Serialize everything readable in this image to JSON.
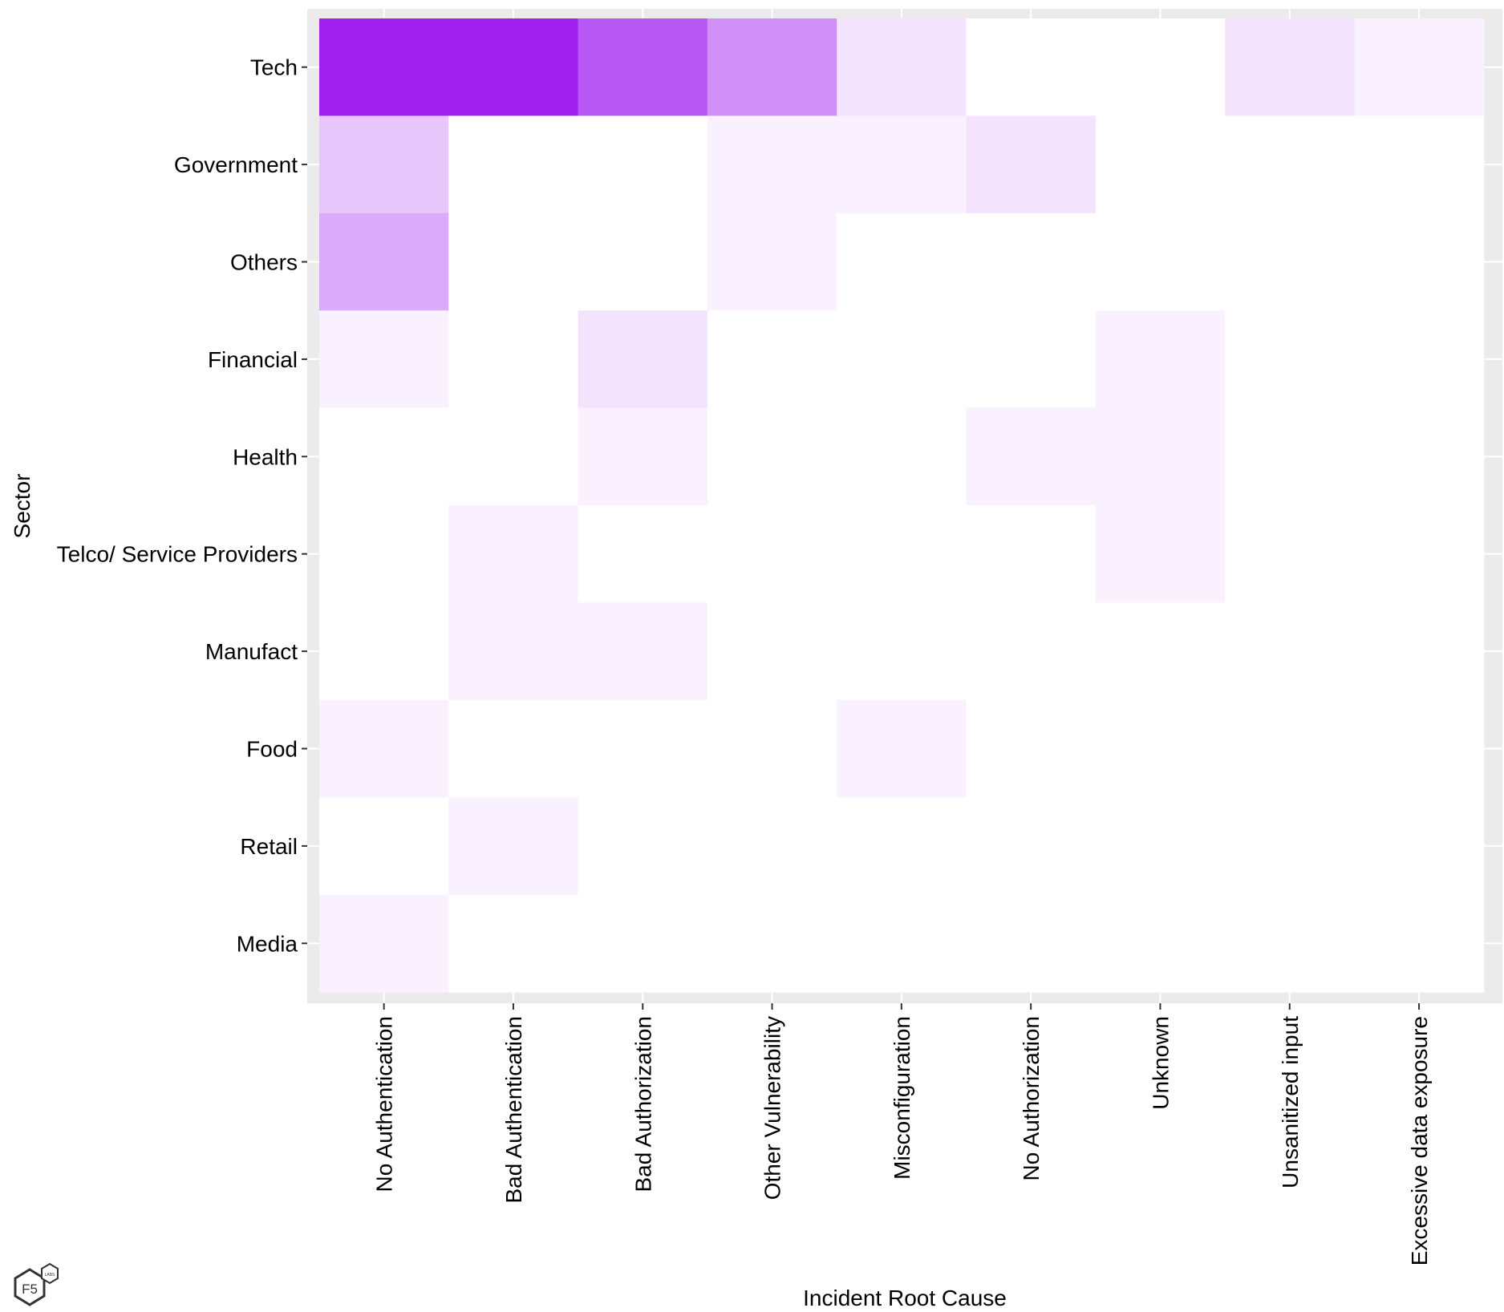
{
  "chart_data": {
    "type": "heatmap",
    "xlabel": "Incident Root Cause",
    "ylabel": "Sector",
    "x_categories": [
      "No Authentication",
      "Bad Authentication",
      "Bad Authorization",
      "Other Vulnerability",
      "Misconfiguration",
      "No Authorization",
      "Unknown",
      "Unsanitized input",
      "Excessive data exposure"
    ],
    "y_categories": [
      "Tech",
      "Government",
      "Others",
      "Financial",
      "Health",
      "Telco/ Service Providers",
      "Manufact",
      "Food",
      "Retail",
      "Media"
    ],
    "values": [
      [
        8,
        8,
        6,
        4,
        1,
        0,
        0,
        1,
        0.5
      ],
      [
        2,
        0,
        0,
        0.5,
        0.5,
        1,
        0,
        0,
        0
      ],
      [
        3,
        0,
        0,
        0.5,
        0,
        0,
        0,
        0,
        0
      ],
      [
        0.5,
        0,
        1,
        0,
        0,
        0,
        0.5,
        0,
        0
      ],
      [
        0,
        0,
        0.5,
        0,
        0,
        0.5,
        0.5,
        0,
        0
      ],
      [
        0,
        0.5,
        0,
        0,
        0,
        0,
        0.5,
        0,
        0
      ],
      [
        0,
        0.5,
        0.5,
        0,
        0,
        0,
        0,
        0,
        0
      ],
      [
        0.5,
        0,
        0,
        0,
        0.5,
        0,
        0,
        0,
        0
      ],
      [
        0,
        0.5,
        0,
        0,
        0,
        0,
        0,
        0,
        0
      ],
      [
        0.5,
        0,
        0,
        0,
        0,
        0,
        0,
        0,
        0
      ]
    ],
    "value_scale": [
      0,
      8
    ],
    "color_low": "#ffffff",
    "color_high": "#a020f0",
    "panel_background": "#ebebeb",
    "grid": true,
    "legend": "none"
  },
  "logo": {
    "text": "F5",
    "sub": "LABS"
  }
}
